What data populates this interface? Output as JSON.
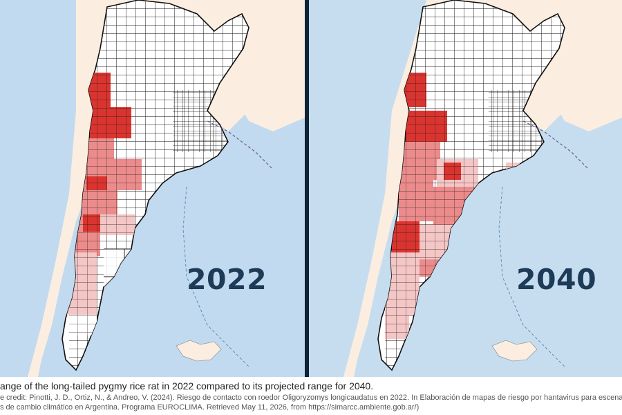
{
  "maps": [
    {
      "year": "2022"
    },
    {
      "year": "2040"
    }
  ],
  "colors": {
    "ocean": "#c6ddf0",
    "land": "#fbeee0",
    "range_light": "#f4c6c6",
    "range_medium": "#ec8b8b",
    "range_dark": "#d9342f",
    "boundary": "#111111",
    "year_text": "#1d3a57"
  },
  "caption": {
    "title": "ange of the long-tailed pygmy rice rat in 2022 compared to its projected range for 2040.",
    "credit": "e credit: Pinotti, J. D., Ortiz, N., & Andreo, V. (2024). Riesgo de contacto con roedor Oligoryzomys longicaudatus en 2022. In Elaboración de mapas de riesgo por hantavirus para escena",
    "credit_line2": "s de cambio climático en Argentina. Programa EUROCLIMA. Retrieved May 11, 2026, from https://simarcc.ambiente.gob.ar/)"
  }
}
